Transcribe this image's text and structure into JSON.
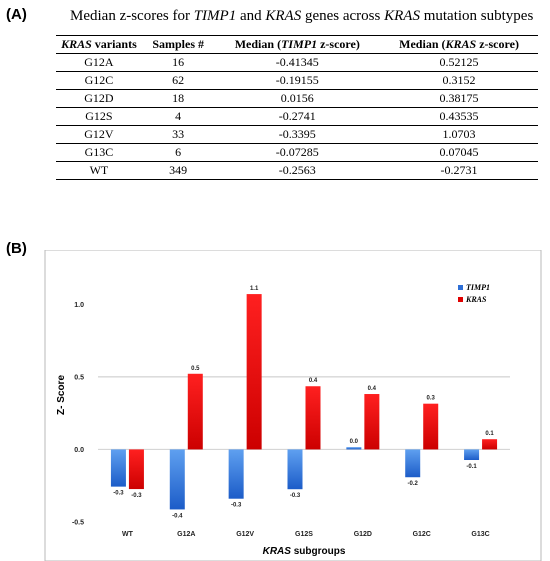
{
  "panel_a": {
    "label": "(A)",
    "caption": {
      "part1": "Median z-scores for ",
      "gene1": "TIMP1",
      "part2": " and ",
      "gene2": "KRAS",
      "part3": " genes across ",
      "gene3": "KRAS",
      "part4": " mutation subtypes"
    },
    "table": {
      "headers": [
        {
          "italic": "KRAS",
          "text": " variants"
        },
        {
          "italic": "",
          "text": "Samples #"
        },
        {
          "pre": "Median (",
          "italic": "TIMP1",
          "text": " z-score)"
        },
        {
          "pre": "Median (",
          "italic": "KRAS",
          "text": " z-score)"
        }
      ],
      "rows": [
        [
          "G12A",
          "16",
          "-0.41345",
          "0.52125"
        ],
        [
          "G12C",
          "62",
          "-0.19155",
          "0.3152"
        ],
        [
          "G12D",
          "18",
          "0.0156",
          "0.38175"
        ],
        [
          "G12S",
          "4",
          "-0.2741",
          "0.43535"
        ],
        [
          "G12V",
          "33",
          "-0.3395",
          "1.0703"
        ],
        [
          "G13C",
          "6",
          "-0.07285",
          "0.07045"
        ],
        [
          "WT",
          "349",
          "-0.2563",
          "-0.2731"
        ]
      ]
    }
  },
  "panel_b": {
    "label": "(B)"
  },
  "chart_data": {
    "type": "bar",
    "title": "",
    "xlabel_italic": "KRAS",
    "xlabel": " subgroups",
    "ylabel": "Z- Score",
    "ylim": [
      -0.5,
      1.25
    ],
    "yticks": [
      "-0.5",
      "0.0",
      "0.5",
      "1.0"
    ],
    "categories": [
      "WT",
      "G12A",
      "G12V",
      "G12S",
      "G12D",
      "G12C",
      "G13C"
    ],
    "series": [
      {
        "name": "TIMP1",
        "color": "#2e6fd6",
        "values": [
          -0.2563,
          -0.41345,
          -0.3395,
          -0.2741,
          0.0156,
          -0.19155,
          -0.07285
        ],
        "labels": [
          "-0.3",
          "-0.4",
          "-0.3",
          "-0.3",
          "0.0",
          "-0.2",
          "-0.1"
        ]
      },
      {
        "name": "KRAS",
        "color": "#e00000",
        "values": [
          -0.2731,
          0.52125,
          1.0703,
          0.43535,
          0.38175,
          0.3152,
          0.07045
        ],
        "labels": [
          "-0.3",
          "0.5",
          "1.1",
          "0.4",
          "0.4",
          "0.3",
          "0.1"
        ]
      }
    ],
    "legend_position": "top-right",
    "gridline_at_value": 0.5
  }
}
